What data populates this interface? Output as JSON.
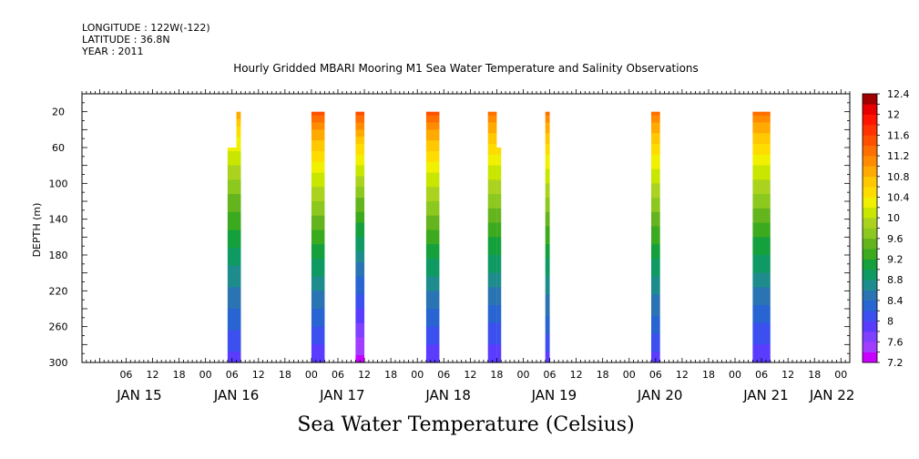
{
  "meta": {
    "longitude": "LONGITUDE : 122W(-122)",
    "latitude": "LATITUDE : 36.8N",
    "year": "YEAR : 2011"
  },
  "chart_data": {
    "type": "heatmap",
    "title": "Hourly Gridded MBARI Mooring M1 Sea Water Temperature and Salinity Observations",
    "bottom_title": "Sea Water Temperature (Celsius)",
    "ylabel": "DEPTH (m)",
    "ylim": [
      0,
      300
    ],
    "y_inverted": true,
    "yticks": [
      20,
      60,
      100,
      140,
      180,
      220,
      260,
      300
    ],
    "x_unit": "hours from JAN 15 00:00",
    "xlim": [
      -4,
      170
    ],
    "hour_ticks": [
      {
        "h": 6,
        "label": "06"
      },
      {
        "h": 12,
        "label": "12"
      },
      {
        "h": 18,
        "label": "18"
      },
      {
        "h": 24,
        "label": "00"
      },
      {
        "h": 30,
        "label": "06"
      },
      {
        "h": 36,
        "label": "12"
      },
      {
        "h": 42,
        "label": "18"
      },
      {
        "h": 48,
        "label": "00"
      },
      {
        "h": 54,
        "label": "06"
      },
      {
        "h": 60,
        "label": "12"
      },
      {
        "h": 66,
        "label": "18"
      },
      {
        "h": 72,
        "label": "00"
      },
      {
        "h": 78,
        "label": "06"
      },
      {
        "h": 84,
        "label": "12"
      },
      {
        "h": 90,
        "label": "18"
      },
      {
        "h": 96,
        "label": "00"
      },
      {
        "h": 102,
        "label": "06"
      },
      {
        "h": 108,
        "label": "12"
      },
      {
        "h": 114,
        "label": "18"
      },
      {
        "h": 120,
        "label": "00"
      },
      {
        "h": 126,
        "label": "06"
      },
      {
        "h": 132,
        "label": "12"
      },
      {
        "h": 138,
        "label": "18"
      },
      {
        "h": 144,
        "label": "00"
      },
      {
        "h": 150,
        "label": "06"
      },
      {
        "h": 156,
        "label": "12"
      },
      {
        "h": 162,
        "label": "18"
      },
      {
        "h": 168,
        "label": "00"
      }
    ],
    "day_labels": [
      {
        "h": 9,
        "label": "JAN 15"
      },
      {
        "h": 31,
        "label": "JAN 16"
      },
      {
        "h": 55,
        "label": "JAN 17"
      },
      {
        "h": 79,
        "label": "JAN 18"
      },
      {
        "h": 103,
        "label": "JAN 19"
      },
      {
        "h": 127,
        "label": "JAN 20"
      },
      {
        "h": 151,
        "label": "JAN 21"
      },
      {
        "h": 166,
        "label": "JAN 22"
      }
    ],
    "colorbar": {
      "levels": [
        7.2,
        7.4,
        7.6,
        7.8,
        8.0,
        8.2,
        8.4,
        8.6,
        8.8,
        9.0,
        9.2,
        9.4,
        9.6,
        9.8,
        10.0,
        10.2,
        10.4,
        10.6,
        10.8,
        11.0,
        11.2,
        11.4,
        11.6,
        11.8,
        12.0,
        12.2,
        12.4
      ],
      "labels": [
        "12.4",
        "12",
        "11.6",
        "11.2",
        "10.8",
        "10.4",
        "10",
        "9.6",
        "9.2",
        "8.8",
        "8.4",
        "8",
        "7.6",
        "7.2"
      ],
      "colors": [
        "#c800ff",
        "#a23cff",
        "#8040ff",
        "#5a3cff",
        "#3c50f0",
        "#2864d2",
        "#2a74b4",
        "#1e8c8c",
        "#0f9a64",
        "#14a03c",
        "#3caa1e",
        "#64b41e",
        "#8cc81e",
        "#aad21e",
        "#c8e600",
        "#f0f000",
        "#ffdc00",
        "#ffc800",
        "#ffaa00",
        "#ff8c00",
        "#ff6e00",
        "#ff5000",
        "#ff3200",
        "#ff1400",
        "#e60000",
        "#a00000"
      ]
    },
    "bars": [
      {
        "start": 29,
        "end": 32,
        "top": 60,
        "bottom": 300,
        "surface_temp": 11.0,
        "bottom_temp": 7.9,
        "upper_segment": {
          "start": 31,
          "end": 32,
          "top": 20
        }
      },
      {
        "start": 48,
        "end": 51,
        "top": 20,
        "bottom": 300,
        "surface_temp": 11.6,
        "bottom_temp": 7.8
      },
      {
        "start": 58,
        "end": 60,
        "top": 20,
        "bottom": 300,
        "surface_temp": 11.6,
        "bottom_temp": 7.3
      },
      {
        "start": 74,
        "end": 77,
        "top": 20,
        "bottom": 300,
        "surface_temp": 11.6,
        "bottom_temp": 7.8
      },
      {
        "start": 88,
        "end": 90,
        "top": 20,
        "bottom": 300,
        "surface_temp": 11.4,
        "bottom_temp": 7.8,
        "lower_segment": {
          "start": 90,
          "end": 91,
          "top": 60
        }
      },
      {
        "start": 101,
        "end": 102,
        "top": 20,
        "bottom": 300,
        "surface_temp": 11.4,
        "bottom_temp": 7.9
      },
      {
        "start": 125,
        "end": 127,
        "top": 20,
        "bottom": 300,
        "surface_temp": 11.4,
        "bottom_temp": 7.9
      },
      {
        "start": 148,
        "end": 152,
        "top": 20,
        "bottom": 300,
        "surface_temp": 11.4,
        "bottom_temp": 7.8
      }
    ]
  }
}
